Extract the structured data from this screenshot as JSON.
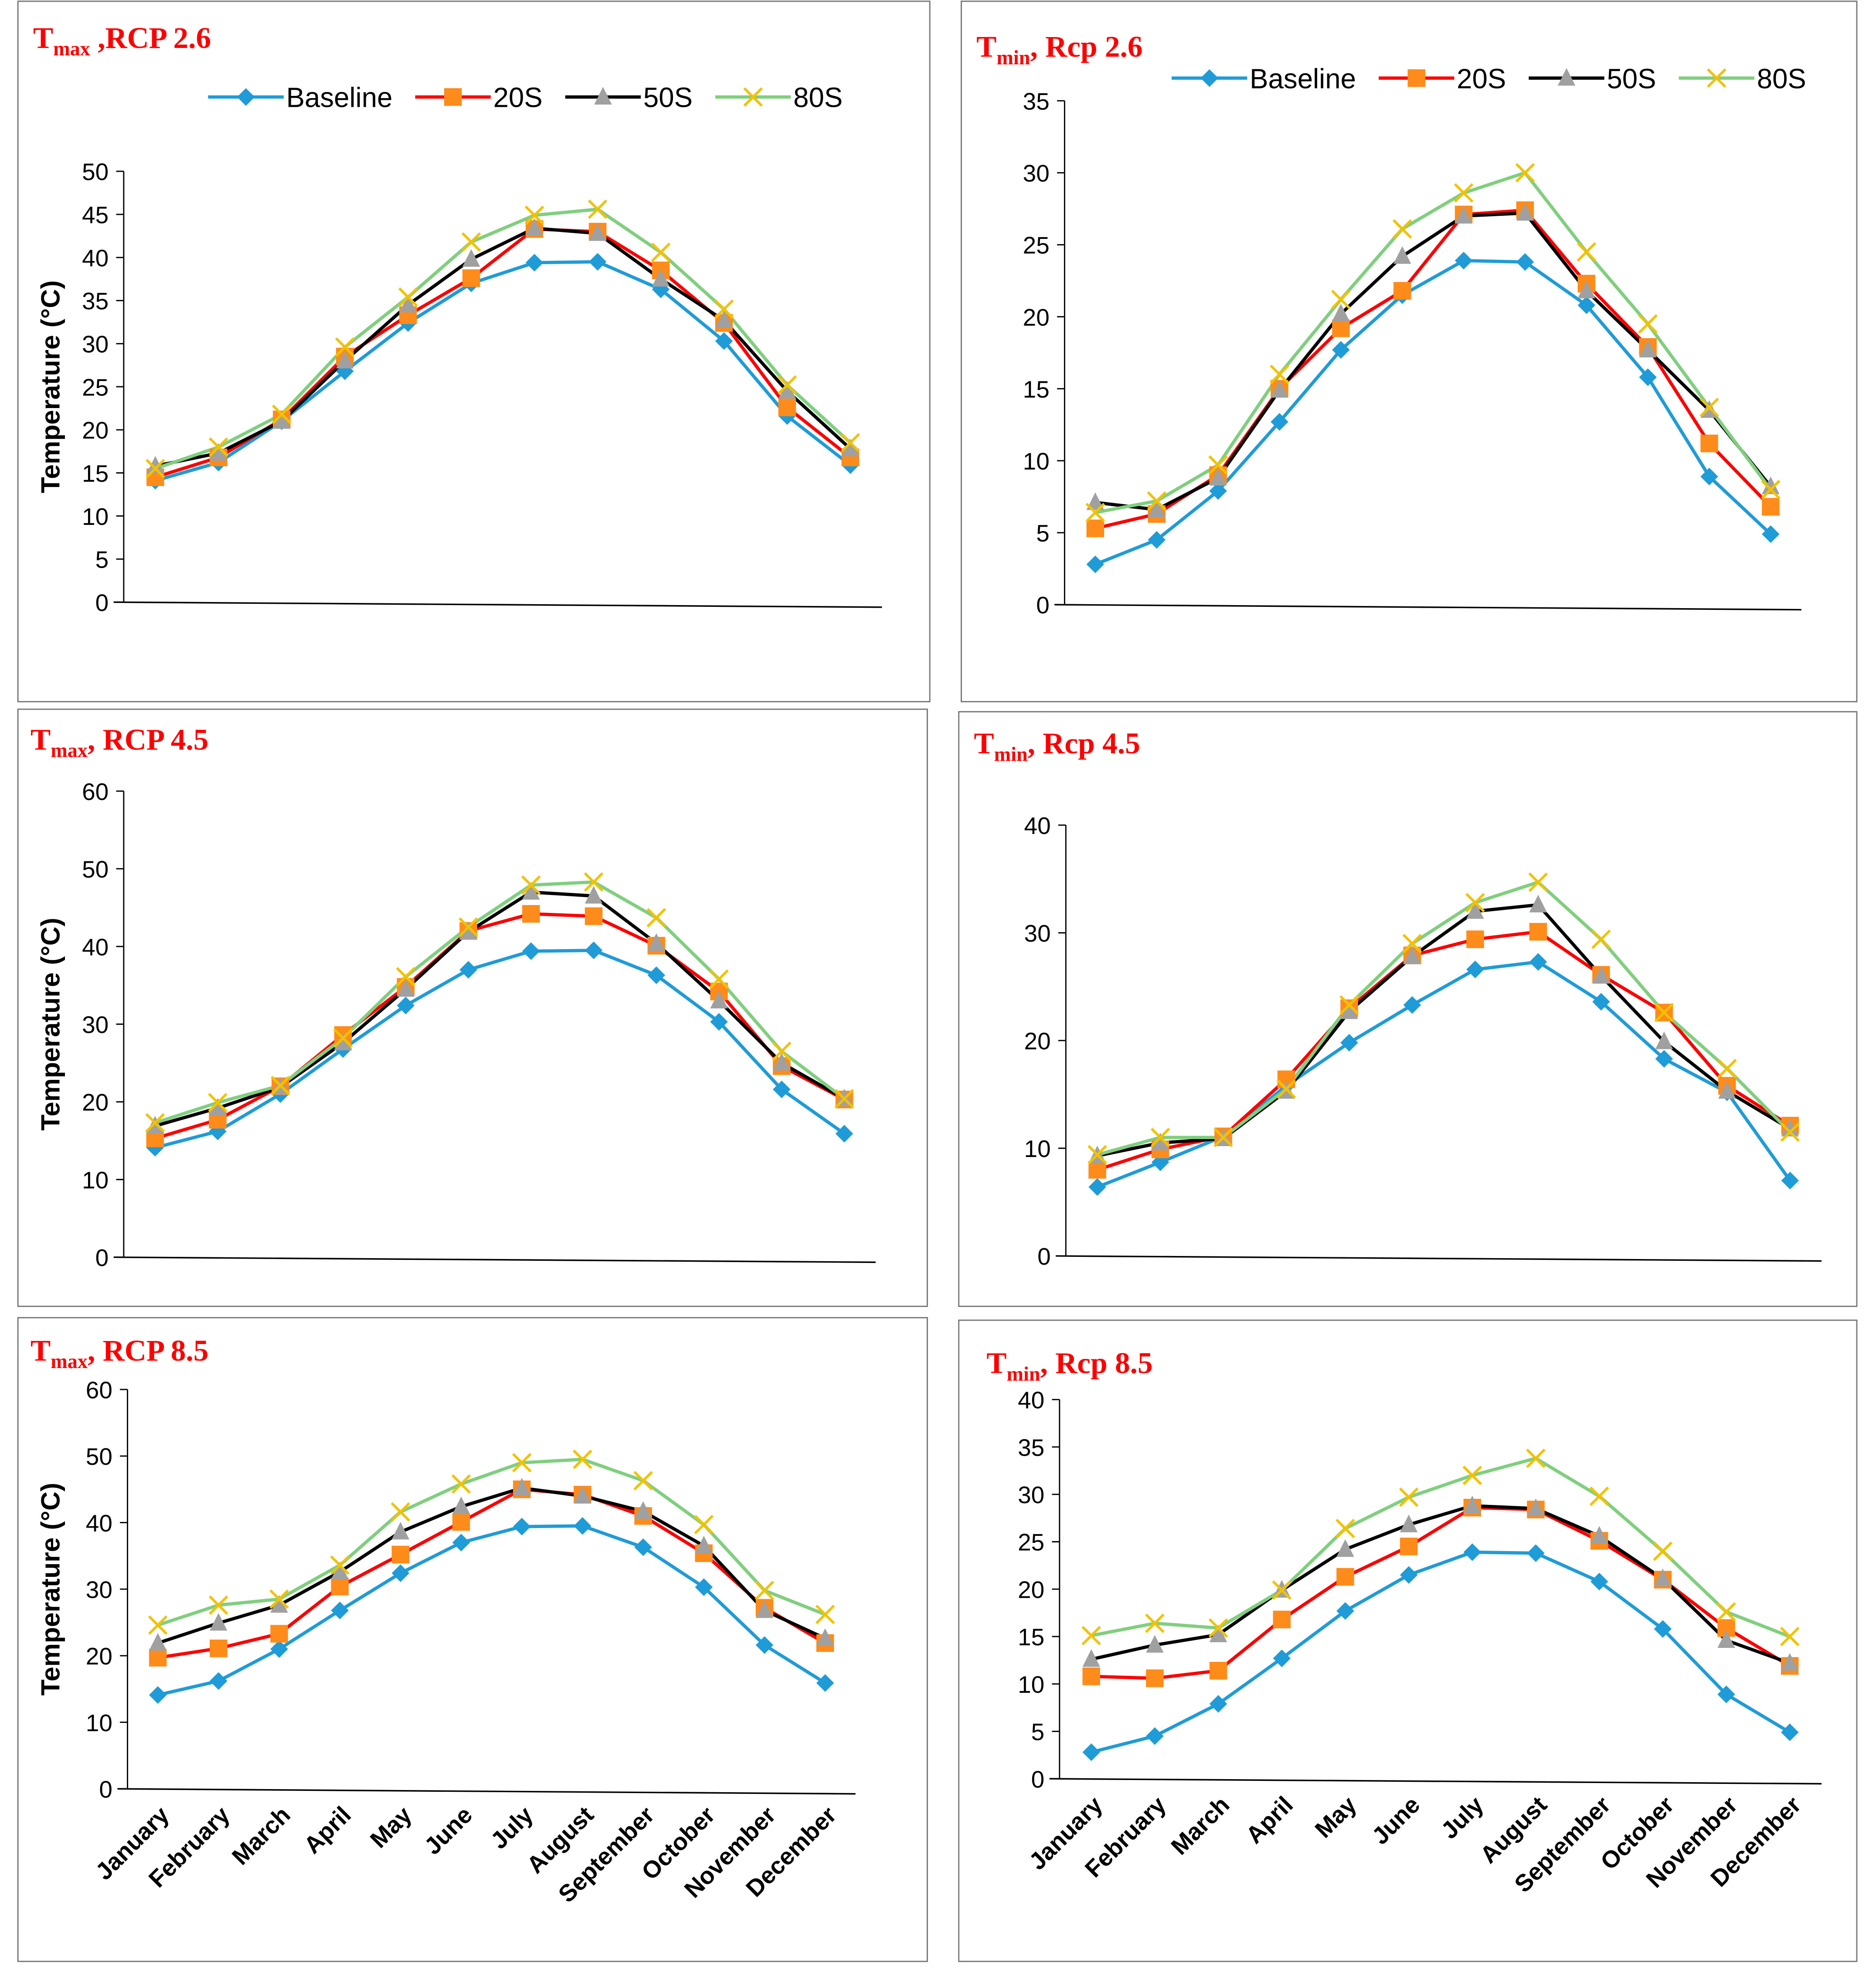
{
  "chart_data": [
    {
      "type": "line",
      "title": [
        "T",
        "max",
        " ,RCP 2.6"
      ],
      "y_label": "Temperature (°C)",
      "legend": true,
      "categories": [
        null,
        null,
        null,
        null,
        null,
        null,
        null,
        null,
        null,
        null,
        null,
        null
      ],
      "ylim": [
        0,
        50
      ],
      "yticks": [
        0,
        5,
        10,
        15,
        20,
        25,
        30,
        35,
        40,
        45,
        50
      ],
      "series": [
        {
          "name": "Baseline",
          "color": "#1f9bd7",
          "marker_color": "#1f9bd7",
          "marker": "diamond",
          "values": [
            14.1,
            16.2,
            21.0,
            26.8,
            32.4,
            37.0,
            39.4,
            39.5,
            36.3,
            30.3,
            21.6,
            15.9
          ]
        },
        {
          "name": "20S",
          "color": "#ff0000",
          "marker_color": "#ff8c1a",
          "marker": "square",
          "values": [
            14.5,
            16.8,
            21.2,
            28.5,
            33.3,
            37.6,
            43.3,
            43.0,
            38.5,
            32.4,
            22.6,
            16.8
          ]
        },
        {
          "name": "50S",
          "color": "#000000",
          "marker_color": "#a0a0a0",
          "marker": "triangle",
          "values": [
            15.8,
            17.3,
            21.0,
            28.0,
            34.5,
            39.8,
            43.4,
            42.8,
            37.5,
            32.7,
            24.5,
            17.8
          ]
        },
        {
          "name": "80S",
          "color": "#7fcf7f",
          "marker_color": "#f2c200",
          "marker": "x",
          "values": [
            15.5,
            18.0,
            21.8,
            29.6,
            35.4,
            41.8,
            44.9,
            45.6,
            40.6,
            34.0,
            25.2,
            18.5
          ]
        }
      ]
    },
    {
      "type": "line",
      "title": [
        "T",
        "min",
        ", Rcp 2.6"
      ],
      "legend": true,
      "categories": [
        null,
        null,
        null,
        null,
        null,
        null,
        null,
        null,
        null,
        null,
        null,
        null
      ],
      "ylim": [
        0,
        35
      ],
      "yticks": [
        0,
        5,
        10,
        15,
        20,
        25,
        30,
        35
      ],
      "series": [
        {
          "name": "Baseline",
          "color": "#1f9bd7",
          "marker_color": "#1f9bd7",
          "marker": "diamond",
          "values": [
            2.8,
            4.5,
            7.9,
            12.7,
            17.7,
            21.5,
            23.9,
            23.8,
            20.8,
            15.8,
            8.9,
            4.9
          ]
        },
        {
          "name": "20S",
          "color": "#ff0000",
          "marker_color": "#ff8c1a",
          "marker": "square",
          "values": [
            5.3,
            6.3,
            9.0,
            15.0,
            19.2,
            21.8,
            27.1,
            27.4,
            22.3,
            17.9,
            11.2,
            6.8
          ]
        },
        {
          "name": "50S",
          "color": "#000000",
          "marker_color": "#a0a0a0",
          "marker": "triangle",
          "values": [
            7.1,
            6.6,
            8.8,
            14.9,
            20.2,
            24.2,
            27.0,
            27.2,
            21.8,
            17.7,
            13.5,
            8.2
          ]
        },
        {
          "name": "80S",
          "color": "#7fcf7f",
          "marker_color": "#f2c200",
          "marker": "x",
          "values": [
            6.4,
            7.2,
            9.7,
            16.0,
            21.2,
            26.1,
            28.6,
            30.0,
            24.5,
            19.5,
            13.7,
            8.0
          ]
        }
      ]
    },
    {
      "type": "line",
      "title": [
        "T",
        "max",
        ", RCP 4.5"
      ],
      "y_label": "Temperature (°C)",
      "legend": false,
      "categories": [
        null,
        null,
        null,
        null,
        null,
        null,
        null,
        null,
        null,
        null,
        null,
        null
      ],
      "ylim": [
        0,
        60
      ],
      "yticks": [
        0,
        10,
        20,
        30,
        40,
        50,
        60
      ],
      "series": [
        {
          "color": "#1f9bd7",
          "marker_color": "#1f9bd7",
          "marker": "diamond",
          "values": [
            14.1,
            16.2,
            21.0,
            26.8,
            32.4,
            37.0,
            39.4,
            39.5,
            36.3,
            30.3,
            21.6,
            15.9
          ]
        },
        {
          "color": "#ff0000",
          "marker_color": "#ff8c1a",
          "marker": "square",
          "values": [
            15.3,
            17.7,
            22.0,
            28.6,
            34.8,
            42.0,
            44.2,
            43.9,
            40.1,
            34.2,
            24.6,
            20.3
          ]
        },
        {
          "color": "#000000",
          "marker_color": "#a0a0a0",
          "marker": "triangle",
          "values": [
            16.9,
            19.2,
            21.9,
            27.6,
            34.5,
            41.9,
            47.0,
            46.5,
            40.4,
            33.0,
            25.0,
            20.4
          ]
        },
        {
          "color": "#7fcf7f",
          "marker_color": "#f2c200",
          "marker": "x",
          "values": [
            17.3,
            19.9,
            22.1,
            28.2,
            36.1,
            42.5,
            47.9,
            48.3,
            43.7,
            35.8,
            26.5,
            20.4
          ]
        }
      ]
    },
    {
      "type": "line",
      "title": [
        "T",
        "min",
        ", Rcp 4.5"
      ],
      "legend": false,
      "categories": [
        null,
        null,
        null,
        null,
        null,
        null,
        null,
        null,
        null,
        null,
        null,
        null
      ],
      "ylim": [
        0,
        40
      ],
      "yticks": [
        0,
        10,
        20,
        30,
        40
      ],
      "series": [
        {
          "color": "#1f9bd7",
          "marker_color": "#1f9bd7",
          "marker": "diamond",
          "values": [
            6.4,
            8.7,
            11.1,
            15.8,
            19.8,
            23.3,
            26.6,
            27.3,
            23.6,
            18.3,
            15.2,
            7.0
          ]
        },
        {
          "color": "#ff0000",
          "marker_color": "#ff8c1a",
          "marker": "square",
          "values": [
            8.0,
            9.9,
            11.1,
            16.4,
            23.0,
            27.9,
            29.4,
            30.1,
            26.1,
            22.6,
            15.8,
            12.1
          ]
        },
        {
          "color": "#000000",
          "marker_color": "#a0a0a0",
          "marker": "triangle",
          "values": [
            9.3,
            10.5,
            10.9,
            15.3,
            22.7,
            27.8,
            32.0,
            32.6,
            26.0,
            19.9,
            15.3,
            11.8
          ]
        },
        {
          "color": "#7fcf7f",
          "marker_color": "#f2c200",
          "marker": "x",
          "values": [
            9.4,
            11.0,
            11.0,
            15.5,
            23.3,
            29.0,
            32.8,
            34.7,
            29.4,
            22.6,
            17.4,
            11.5
          ]
        }
      ]
    },
    {
      "type": "line",
      "title": [
        "T",
        "max",
        ", RCP 8.5"
      ],
      "y_label": "Temperature (°C)",
      "legend": false,
      "categories": [
        "January",
        "February",
        "March",
        "April",
        "May",
        "June",
        "July",
        "August",
        "September",
        "October",
        "November",
        "December"
      ],
      "ylim": [
        0,
        60
      ],
      "yticks": [
        0,
        10,
        20,
        30,
        40,
        50,
        60
      ],
      "series": [
        {
          "color": "#1f9bd7",
          "marker_color": "#1f9bd7",
          "marker": "diamond",
          "values": [
            14.1,
            16.2,
            21.0,
            26.8,
            32.4,
            37.0,
            39.4,
            39.5,
            36.3,
            30.3,
            21.6,
            15.9
          ]
        },
        {
          "color": "#ff0000",
          "marker_color": "#ff8c1a",
          "marker": "square",
          "values": [
            19.7,
            21.1,
            23.3,
            30.4,
            35.2,
            40.1,
            45.0,
            44.2,
            41.0,
            35.4,
            27.2,
            21.9
          ]
        },
        {
          "color": "#000000",
          "marker_color": "#a0a0a0",
          "marker": "triangle",
          "values": [
            21.9,
            24.9,
            27.6,
            32.6,
            38.6,
            42.4,
            45.2,
            44.0,
            41.7,
            36.5,
            26.8,
            22.6
          ]
        },
        {
          "color": "#7fcf7f",
          "marker_color": "#f2c200",
          "marker": "x",
          "values": [
            24.6,
            27.6,
            28.5,
            33.6,
            41.6,
            45.8,
            49.0,
            49.5,
            46.3,
            39.7,
            29.8,
            26.2
          ]
        }
      ]
    },
    {
      "type": "line",
      "title": [
        "T",
        "min",
        ", Rcp 8.5"
      ],
      "legend": false,
      "categories": [
        "January",
        "February",
        "March",
        "April",
        "May",
        "June",
        "July",
        "August",
        "September",
        "October",
        "November",
        "December"
      ],
      "ylim": [
        0,
        40
      ],
      "yticks": [
        0,
        5,
        10,
        15,
        20,
        25,
        30,
        35,
        40
      ],
      "series": [
        {
          "color": "#1f9bd7",
          "marker_color": "#1f9bd7",
          "marker": "diamond",
          "values": [
            2.8,
            4.5,
            7.9,
            12.7,
            17.7,
            21.5,
            23.9,
            23.8,
            20.8,
            15.8,
            8.9,
            4.9
          ]
        },
        {
          "color": "#ff0000",
          "marker_color": "#ff8c1a",
          "marker": "square",
          "values": [
            10.8,
            10.6,
            11.4,
            16.8,
            21.3,
            24.5,
            28.6,
            28.4,
            25.1,
            21.0,
            15.9,
            11.9
          ]
        },
        {
          "color": "#000000",
          "marker_color": "#a0a0a0",
          "marker": "triangle",
          "values": [
            12.6,
            14.1,
            15.2,
            19.9,
            24.2,
            26.8,
            28.8,
            28.5,
            25.6,
            21.1,
            14.6,
            12.2
          ]
        },
        {
          "color": "#7fcf7f",
          "marker_color": "#f2c200",
          "marker": "x",
          "values": [
            15.1,
            16.4,
            15.9,
            19.9,
            26.4,
            29.7,
            32.0,
            33.8,
            29.8,
            24.0,
            17.6,
            15.0
          ]
        }
      ]
    }
  ]
}
